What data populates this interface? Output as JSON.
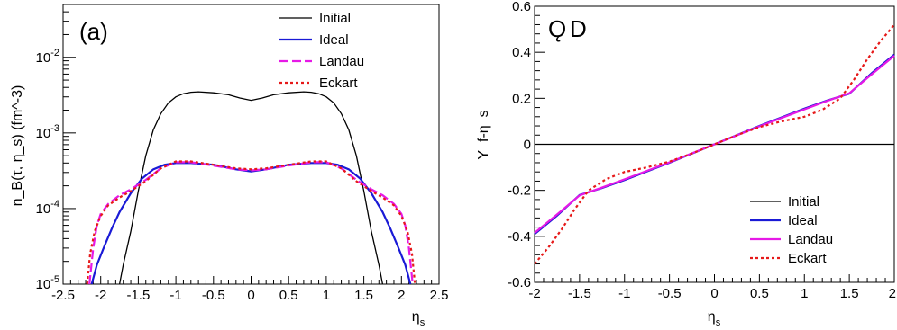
{
  "chart_data": [
    {
      "type": "line",
      "panel_label": "(a)",
      "xlabel": "η",
      "xlabel_sub": "s",
      "ylabel": "n_B(τ, η_s) (fm^-3)",
      "xlim": [
        -2.5,
        2.5
      ],
      "ylim": [
        1e-05,
        0.05
      ],
      "yscale": "log",
      "x_ticks": [
        "-2.5",
        "-2",
        "-1.5",
        "-1",
        "-0.5",
        "0",
        "0.5",
        "1",
        "1.5",
        "2",
        "2.5"
      ],
      "y_ticks": [
        {
          "base": "10",
          "exp": "-5"
        },
        {
          "base": "10",
          "exp": "-4"
        },
        {
          "base": "10",
          "exp": "-3"
        },
        {
          "base": "10",
          "exp": "-2"
        }
      ],
      "legend_position": "top-right",
      "series": [
        {
          "name": "Initial",
          "color": "#000000",
          "dash": "solid",
          "x": [
            -1.75,
            -1.7,
            -1.6,
            -1.5,
            -1.4,
            -1.3,
            -1.2,
            -1.1,
            -1.0,
            -0.9,
            -0.8,
            -0.7,
            -0.5,
            -0.3,
            -0.15,
            0.0,
            0.15,
            0.3,
            0.5,
            0.7,
            0.8,
            0.9,
            1.0,
            1.1,
            1.2,
            1.3,
            1.4,
            1.5,
            1.6,
            1.7,
            1.75
          ],
          "y": [
            1e-05,
            1.8e-05,
            5e-05,
            0.00017,
            0.0005,
            0.0011,
            0.0018,
            0.0025,
            0.003,
            0.0033,
            0.00345,
            0.0035,
            0.0034,
            0.0032,
            0.0029,
            0.0027,
            0.0029,
            0.0032,
            0.0034,
            0.0035,
            0.00345,
            0.0033,
            0.003,
            0.0025,
            0.0018,
            0.0011,
            0.0005,
            0.00017,
            5e-05,
            1.8e-05,
            1e-05
          ]
        },
        {
          "name": "Ideal",
          "color": "#1a1ad6",
          "dash": "solid",
          "x": [
            -2.12,
            -2.05,
            -1.95,
            -1.85,
            -1.75,
            -1.6,
            -1.45,
            -1.3,
            -1.15,
            -1.0,
            -0.8,
            -0.5,
            -0.2,
            0.0,
            0.2,
            0.5,
            0.8,
            1.0,
            1.15,
            1.3,
            1.45,
            1.6,
            1.75,
            1.85,
            1.95,
            2.05,
            2.12
          ],
          "y": [
            1e-05,
            1.8e-05,
            3.2e-05,
            5.5e-05,
            9e-05,
            0.00016,
            0.00025,
            0.00033,
            0.00038,
            0.0004,
            0.0004,
            0.00038,
            0.00033,
            0.00031,
            0.00033,
            0.00038,
            0.0004,
            0.0004,
            0.00038,
            0.00033,
            0.00025,
            0.00016,
            9e-05,
            5.5e-05,
            3.2e-05,
            1.8e-05,
            1e-05
          ]
        },
        {
          "name": "Landau",
          "color": "#e619e6",
          "dash": "dash",
          "x": [
            -2.15,
            -2.1,
            -2.05,
            -2.0,
            -1.9,
            -1.75,
            -1.6,
            -1.4,
            -1.2,
            -1.0,
            -0.8,
            -0.5,
            -0.2,
            0.0,
            0.2,
            0.5,
            0.8,
            1.0,
            1.2,
            1.4,
            1.6,
            1.75,
            1.9,
            2.0,
            2.05,
            2.1,
            2.15
          ],
          "y": [
            1e-05,
            3e-05,
            6e-05,
            8.5e-05,
            0.000115,
            0.00015,
            0.00018,
            0.00024,
            0.00034,
            0.00041,
            0.00041,
            0.00037,
            0.00033,
            0.00032,
            0.00033,
            0.00037,
            0.00041,
            0.00041,
            0.00034,
            0.00024,
            0.00018,
            0.00015,
            0.000115,
            8.5e-05,
            6e-05,
            3e-05,
            1e-05
          ]
        },
        {
          "name": "Eckart",
          "color": "#e61919",
          "dash": "dot",
          "x": [
            -2.18,
            -2.14,
            -2.08,
            -2.0,
            -1.9,
            -1.75,
            -1.6,
            -1.4,
            -1.2,
            -1.0,
            -0.8,
            -0.5,
            -0.2,
            0.0,
            0.2,
            0.5,
            0.8,
            1.0,
            1.2,
            1.4,
            1.6,
            1.75,
            1.9,
            2.0,
            2.08,
            2.14,
            2.18
          ],
          "y": [
            1e-05,
            2.5e-05,
            5e-05,
            8e-05,
            0.00011,
            0.00014,
            0.00017,
            0.00023,
            0.00034,
            0.00042,
            0.00042,
            0.00038,
            0.00034,
            0.00033,
            0.00034,
            0.00038,
            0.00042,
            0.00042,
            0.00034,
            0.00023,
            0.00017,
            0.00014,
            0.00011,
            8e-05,
            5e-05,
            2.5e-05,
            1e-05
          ]
        }
      ]
    },
    {
      "type": "line",
      "panel_label": "Ǫ",
      "panel_label_overlay": "D",
      "xlabel": "η",
      "xlabel_sub": "s",
      "ylabel": "Y_f-η_s",
      "xlim": [
        -2,
        2
      ],
      "ylim": [
        -0.6,
        0.6
      ],
      "yscale": "linear",
      "x_ticks": [
        "-2",
        "-1.5",
        "-1",
        "-0.5",
        "0",
        "0.5",
        "1",
        "1.5",
        "2"
      ],
      "y_ticks": [
        "-0.6",
        "-0.4",
        "-0.2",
        "0",
        "0.2",
        "0.4",
        "0.6"
      ],
      "legend_position": "bottom-right",
      "series": [
        {
          "name": "Initial",
          "color": "#000000",
          "dash": "solid",
          "x": [
            -2,
            2
          ],
          "y": [
            0,
            0
          ]
        },
        {
          "name": "Ideal",
          "color": "#1a1ad6",
          "dash": "solid",
          "x": [
            -2.0,
            -1.75,
            -1.5,
            -1.25,
            -1.0,
            -0.5,
            0.0,
            0.5,
            1.0,
            1.25,
            1.5,
            1.75,
            2.0
          ],
          "y": [
            -0.39,
            -0.31,
            -0.22,
            -0.19,
            -0.155,
            -0.08,
            0.0,
            0.08,
            0.155,
            0.19,
            0.22,
            0.31,
            0.39
          ]
        },
        {
          "name": "Landau",
          "color": "#e619e6",
          "dash": "solid",
          "x": [
            -2.0,
            -1.75,
            -1.5,
            -1.25,
            -1.0,
            -0.5,
            0.0,
            0.5,
            1.0,
            1.25,
            1.5,
            1.75,
            2.0
          ],
          "y": [
            -0.385,
            -0.305,
            -0.222,
            -0.188,
            -0.152,
            -0.078,
            0.0,
            0.078,
            0.152,
            0.188,
            0.222,
            0.305,
            0.385
          ]
        },
        {
          "name": "Eckart",
          "color": "#e61919",
          "dash": "dot",
          "x": [
            -2.0,
            -1.85,
            -1.7,
            -1.55,
            -1.4,
            -1.2,
            -1.0,
            -0.75,
            -0.5,
            -0.25,
            0.0,
            0.25,
            0.5,
            0.75,
            1.0,
            1.2,
            1.4,
            1.55,
            1.7,
            1.85,
            2.0
          ],
          "y": [
            -0.52,
            -0.45,
            -0.37,
            -0.28,
            -0.2,
            -0.15,
            -0.12,
            -0.1,
            -0.075,
            -0.04,
            0.0,
            0.04,
            0.075,
            0.1,
            0.12,
            0.15,
            0.2,
            0.28,
            0.37,
            0.45,
            0.52
          ]
        }
      ]
    }
  ]
}
